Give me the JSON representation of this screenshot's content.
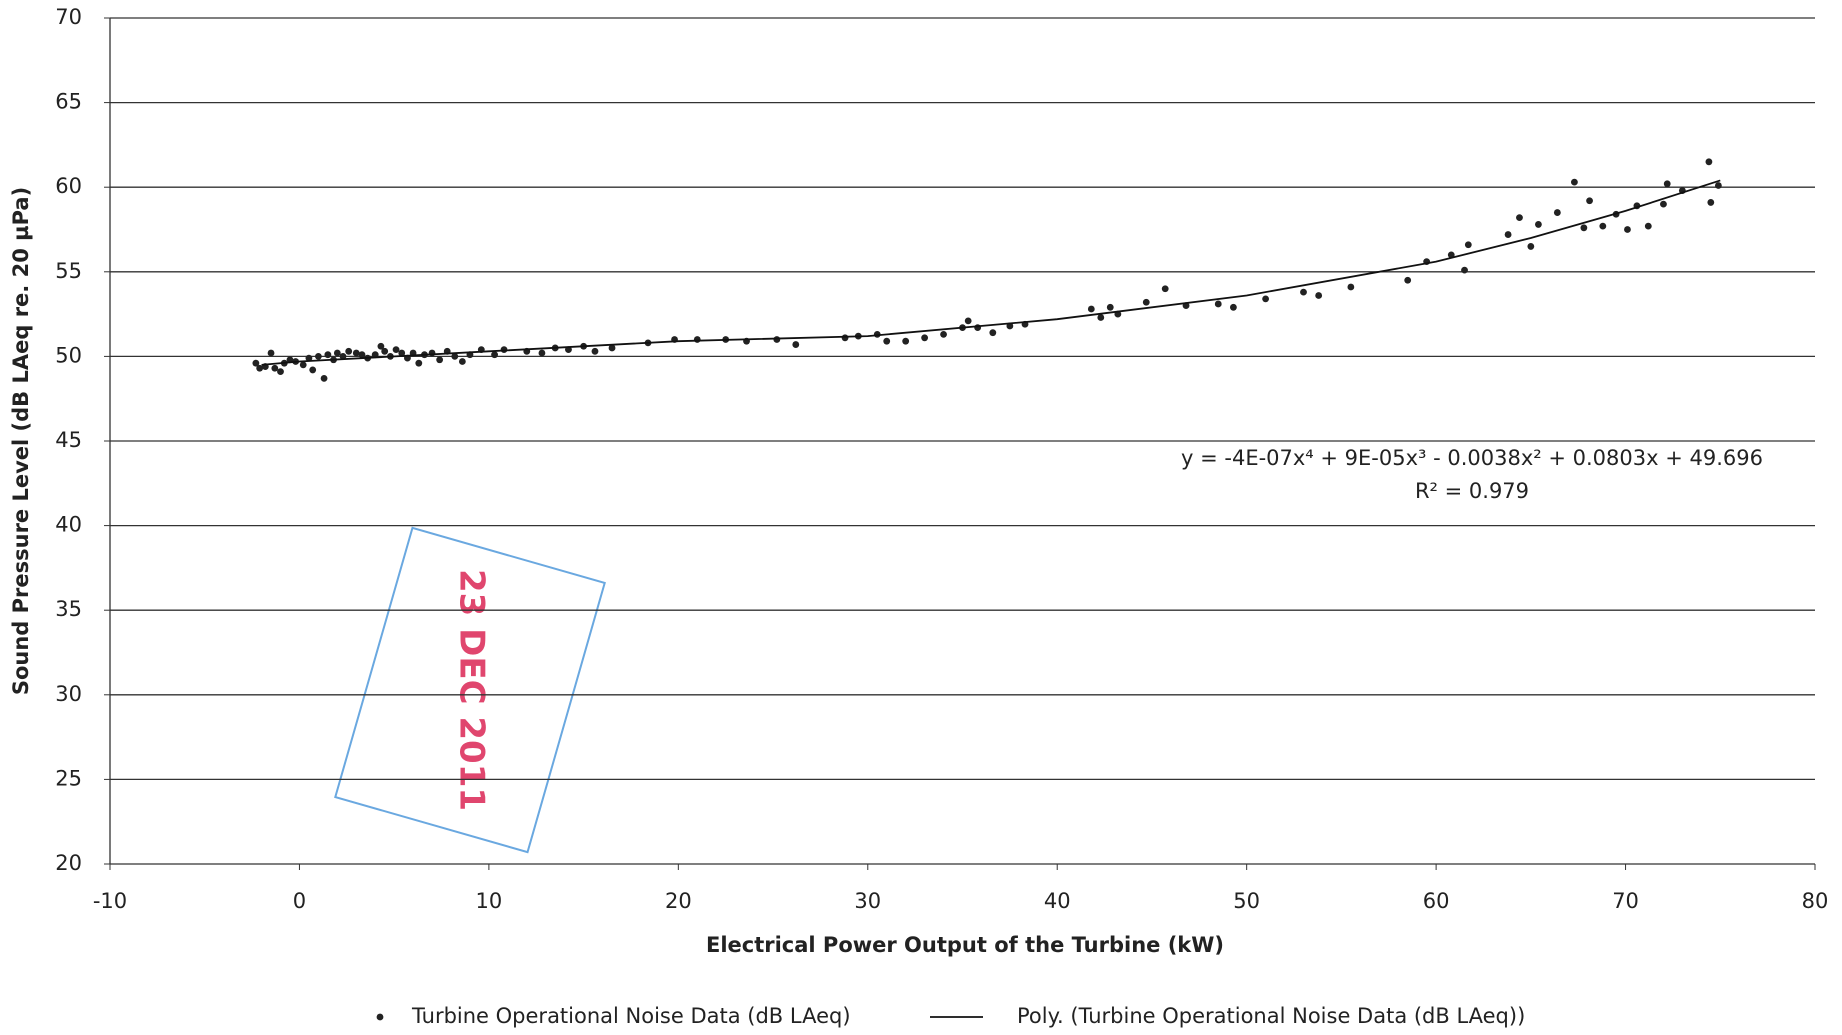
{
  "chart_data": {
    "type": "scatter",
    "xlabel": "Electrical Power Output of the Turbine (kW)",
    "ylabel": "Sound Pressure Level (dB LAeq re. 20 µPa)",
    "xlim": [
      -10,
      80
    ],
    "xticks": [
      -10,
      0,
      10,
      20,
      30,
      40,
      50,
      60,
      70,
      80
    ],
    "ylim": [
      20,
      70
    ],
    "yticks": [
      20,
      25,
      30,
      35,
      40,
      45,
      50,
      55,
      60,
      65,
      70
    ],
    "grid": true,
    "legend": "bottom",
    "annotations": [
      "y = -4E-07x⁴ + 9E-05x³ - 0.0038x² + 0.0803x + 49.696",
      "R² = 0.979"
    ],
    "series": [
      {
        "name": "Turbine Operational Noise Data (dB LAeq)",
        "type": "scatter",
        "color": "#222222",
        "x": [
          -2.3,
          -2.1,
          -1.8,
          -1.5,
          -1.3,
          -1.0,
          -0.8,
          -0.5,
          -0.2,
          0.2,
          0.5,
          0.7,
          1.0,
          1.3,
          1.5,
          1.8,
          2.0,
          2.3,
          2.6,
          3.0,
          3.3,
          3.6,
          4.0,
          4.3,
          4.5,
          4.8,
          5.1,
          5.4,
          5.7,
          6.0,
          6.3,
          6.6,
          7.0,
          7.4,
          7.8,
          8.2,
          8.6,
          9.0,
          9.6,
          10.3,
          10.8,
          12.0,
          12.8,
          13.5,
          14.2,
          15.0,
          15.6,
          16.5,
          18.4,
          19.8,
          21.0,
          22.5,
          23.6,
          25.2,
          26.2,
          28.8,
          29.5,
          30.5,
          31.0,
          32.0,
          33.0,
          34.0,
          35.0,
          35.3,
          35.8,
          36.6,
          37.5,
          38.3,
          41.8,
          42.3,
          42.8,
          43.2,
          44.7,
          45.7,
          46.8,
          48.5,
          49.3,
          51.0,
          53.0,
          53.8,
          55.5,
          58.5,
          59.5,
          60.8,
          61.5,
          61.7,
          63.8,
          64.4,
          65.0,
          65.4,
          66.4,
          67.3,
          67.8,
          68.1,
          68.8,
          69.5,
          70.1,
          70.6,
          71.2,
          72.0,
          72.2,
          73.0,
          74.4,
          74.5,
          74.9
        ],
        "values": [
          49.6,
          49.3,
          49.4,
          50.2,
          49.3,
          49.1,
          49.6,
          49.8,
          49.7,
          49.5,
          49.9,
          49.2,
          50.0,
          48.7,
          50.1,
          49.8,
          50.2,
          50.0,
          50.3,
          50.2,
          50.1,
          49.9,
          50.1,
          50.6,
          50.3,
          50.0,
          50.4,
          50.2,
          49.9,
          50.2,
          49.6,
          50.1,
          50.2,
          49.8,
          50.3,
          50.0,
          49.7,
          50.1,
          50.4,
          50.1,
          50.4,
          50.3,
          50.2,
          50.5,
          50.4,
          50.6,
          50.3,
          50.5,
          50.8,
          51.0,
          51.0,
          51.0,
          50.9,
          51.0,
          50.7,
          51.1,
          51.2,
          51.3,
          50.9,
          50.9,
          51.1,
          51.3,
          51.7,
          52.1,
          51.7,
          51.4,
          51.8,
          51.9,
          52.8,
          52.3,
          52.9,
          52.5,
          53.2,
          54.0,
          53.0,
          53.1,
          52.9,
          53.4,
          53.8,
          53.6,
          54.1,
          54.5,
          55.6,
          56.0,
          55.1,
          56.6,
          57.2,
          58.2,
          56.5,
          57.8,
          58.5,
          60.3,
          57.6,
          59.2,
          57.7,
          58.4,
          57.5,
          58.9,
          57.7,
          59.0,
          60.2,
          59.8,
          61.5,
          59.1,
          60.1
        ]
      },
      {
        "name": "Poly. (Turbine Operational Noise Data (dB LAeq))",
        "type": "line",
        "color": "#111111",
        "x": [
          -2,
          0,
          10,
          20,
          30,
          40,
          50,
          60,
          65,
          70,
          75
        ],
        "values": [
          49.5,
          49.7,
          50.3,
          50.9,
          51.2,
          52.2,
          53.6,
          55.6,
          57.0,
          58.6,
          60.4
        ]
      }
    ]
  },
  "stamp": {
    "date": "23 DEC 2011"
  }
}
